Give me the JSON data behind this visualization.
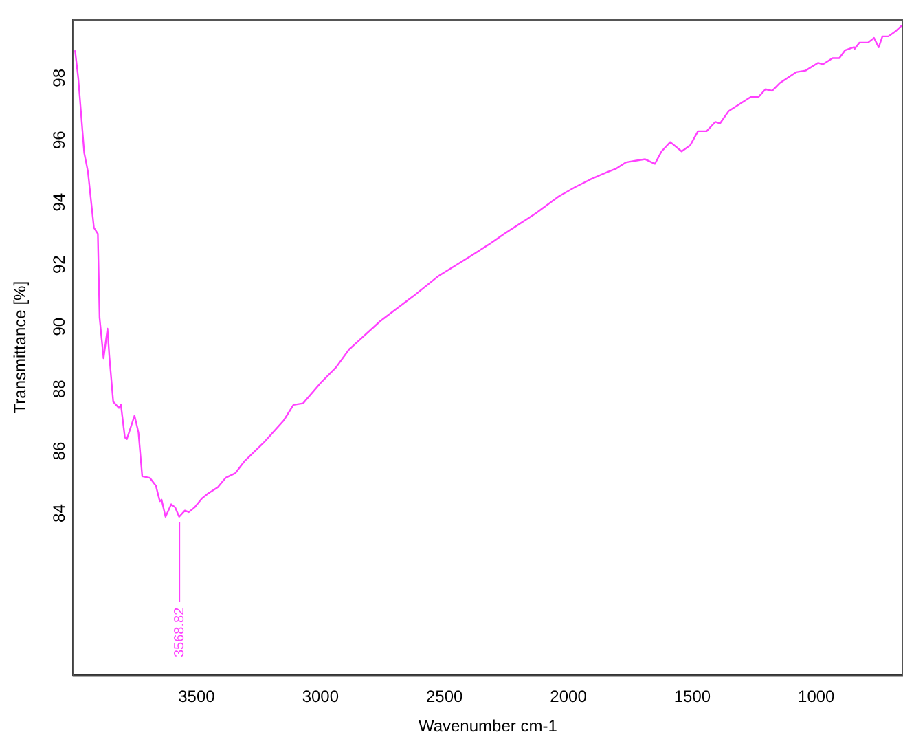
{
  "chart_data": {
    "type": "line",
    "xlabel": "Wavenumber cm-1",
    "ylabel": "Transmittance [%]",
    "xlim": [
      4000,
      650
    ],
    "ylim": [
      78.8,
      99.9
    ],
    "xticks": [
      3500,
      3000,
      2500,
      2000,
      1500,
      1000
    ],
    "yticks": [
      84,
      86,
      88,
      90,
      92,
      94,
      96,
      98
    ],
    "grid": false,
    "legend": false,
    "marker": "none",
    "line_style": "solid",
    "annotations": [
      {
        "text": "3568.82",
        "x": 3568.82,
        "y": 83.9
      }
    ],
    "series": [
      {
        "color": "#ff40ff",
        "x": [
          3990,
          3977,
          3953,
          3938,
          3914,
          3898,
          3891,
          3875,
          3859,
          3852,
          3836,
          3813,
          3805,
          3789,
          3781,
          3750,
          3734,
          3719,
          3688,
          3664,
          3648,
          3641,
          3625,
          3602,
          3586,
          3570,
          3547,
          3531,
          3508,
          3477,
          3453,
          3414,
          3383,
          3344,
          3305,
          3227,
          3148,
          3109,
          3070,
          3000,
          2938,
          2883,
          2875,
          2758,
          2625,
          2523,
          2391,
          2313,
          2258,
          2133,
          2039,
          1973,
          1911,
          1845,
          1806,
          1767,
          1729,
          1690,
          1651,
          1624,
          1589,
          1543,
          1508,
          1477,
          1442,
          1407,
          1388,
          1353,
          1264,
          1233,
          1205,
          1178,
          1147,
          1081,
          1043,
          992,
          973,
          934,
          907,
          884,
          849,
          845,
          826,
          791,
          767,
          748,
          733,
          709,
          682,
          655
        ],
        "values": [
          98.9,
          98.0,
          95.6,
          95.0,
          93.2,
          93.0,
          90.3,
          89.0,
          89.95,
          89.1,
          87.6,
          87.4,
          87.5,
          86.45,
          86.4,
          87.15,
          86.6,
          85.2,
          85.15,
          84.9,
          84.4,
          84.45,
          83.9,
          84.3,
          84.2,
          83.9,
          84.1,
          84.05,
          84.2,
          84.5,
          84.65,
          84.85,
          85.15,
          85.3,
          85.7,
          86.3,
          87.0,
          87.5,
          87.55,
          88.2,
          88.7,
          89.3,
          89.35,
          90.2,
          91.0,
          91.65,
          92.3,
          92.7,
          93.0,
          93.65,
          94.2,
          94.5,
          94.75,
          94.98,
          95.1,
          95.3,
          95.35,
          95.4,
          95.25,
          95.65,
          95.95,
          95.65,
          95.85,
          96.3,
          96.3,
          96.6,
          96.55,
          96.95,
          97.4,
          97.4,
          97.65,
          97.6,
          97.85,
          98.2,
          98.25,
          98.5,
          98.45,
          98.65,
          98.65,
          98.9,
          99.0,
          98.95,
          99.15,
          99.15,
          99.3,
          99.0,
          99.35,
          99.35,
          99.5,
          99.7
        ]
      }
    ]
  }
}
